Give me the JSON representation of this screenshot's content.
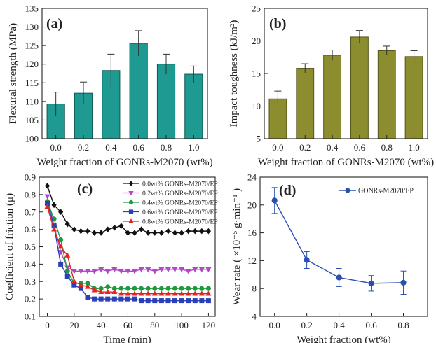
{
  "chart_data": [
    {
      "type": "bar",
      "panel_label": "(a)",
      "categories": [
        "0.0",
        "0.2",
        "0.4",
        "0.6",
        "0.8",
        "1.0"
      ],
      "values": [
        109.3,
        112.2,
        118.3,
        125.6,
        120.0,
        117.3
      ],
      "errors": [
        3.2,
        3.0,
        4.4,
        3.4,
        2.7,
        2.2
      ],
      "xlabel": "Weight fraction of GONRs-M2070 (wt%)",
      "ylabel": "Flexural strength (MPa)",
      "ylim": [
        100,
        135
      ],
      "yticks": [
        "100",
        "105",
        "110",
        "115",
        "120",
        "125",
        "130",
        "135"
      ],
      "color": "#1e9a93",
      "edge_color": "#0f5a55"
    },
    {
      "type": "bar",
      "panel_label": "(b)",
      "categories": [
        "0.0",
        "0.2",
        "0.4",
        "0.6",
        "0.8",
        "1.0"
      ],
      "values": [
        11.1,
        15.8,
        17.8,
        20.6,
        18.5,
        17.6
      ],
      "errors": [
        1.2,
        0.7,
        0.8,
        1.0,
        0.7,
        0.9
      ],
      "xlabel": "Weight fraction of GONRs-M2070 (wt%)",
      "ylabel": "Impact toughness (kJ/m²)",
      "ylim": [
        5,
        25
      ],
      "yticks": [
        "5",
        "10",
        "15",
        "20",
        "25"
      ],
      "color": "#8b8d2e",
      "edge_color": "#54561a"
    },
    {
      "type": "line",
      "panel_label": "(c)",
      "xlabel": "Time (min)",
      "ylabel": "Coefficient of friction (μ)",
      "xlim": [
        -6,
        125
      ],
      "ylim": [
        0.1,
        0.9
      ],
      "xticks": [
        "0",
        "20",
        "40",
        "60",
        "80",
        "100",
        "120"
      ],
      "yticks": [
        "0.1",
        "0.2",
        "0.3",
        "0.4",
        "0.5",
        "0.6",
        "0.7",
        "0.8",
        "0.9"
      ],
      "legend_position": "top-right",
      "x": [
        0,
        5,
        10,
        15,
        20,
        25,
        30,
        35,
        40,
        45,
        50,
        55,
        60,
        65,
        70,
        75,
        80,
        85,
        90,
        95,
        100,
        105,
        110,
        115,
        120
      ],
      "series": [
        {
          "name": "0.0wt% GONRs-M2070/EP",
          "color": "#111111",
          "marker": "diamond",
          "values": [
            0.85,
            0.74,
            0.7,
            0.63,
            0.6,
            0.59,
            0.59,
            0.58,
            0.58,
            0.6,
            0.61,
            0.62,
            0.58,
            0.58,
            0.6,
            0.58,
            0.58,
            0.58,
            0.59,
            0.58,
            0.58,
            0.59,
            0.59,
            0.59,
            0.59
          ]
        },
        {
          "name": "0.2wt% GONRs-M2070/EP",
          "color": "#b447c8",
          "marker": "triangle-down",
          "values": [
            0.79,
            0.62,
            0.47,
            0.38,
            0.36,
            0.36,
            0.36,
            0.36,
            0.37,
            0.36,
            0.37,
            0.36,
            0.36,
            0.36,
            0.37,
            0.37,
            0.36,
            0.37,
            0.37,
            0.37,
            0.37,
            0.36,
            0.37,
            0.37,
            0.37
          ]
        },
        {
          "name": "0.4wt% GONRs-M2070/EP",
          "color": "#1c9a3c",
          "marker": "circle",
          "values": [
            0.76,
            0.66,
            0.54,
            0.36,
            0.29,
            0.29,
            0.29,
            0.26,
            0.26,
            0.27,
            0.26,
            0.26,
            0.26,
            0.26,
            0.26,
            0.26,
            0.26,
            0.26,
            0.26,
            0.26,
            0.26,
            0.26,
            0.26,
            0.26,
            0.26
          ]
        },
        {
          "name": "0.6wt% GONRs-M2070/EP",
          "color": "#2a3fb8",
          "marker": "square",
          "values": [
            0.75,
            0.62,
            0.4,
            0.33,
            0.28,
            0.26,
            0.21,
            0.2,
            0.2,
            0.2,
            0.2,
            0.2,
            0.2,
            0.2,
            0.19,
            0.19,
            0.19,
            0.19,
            0.19,
            0.19,
            0.19,
            0.19,
            0.19,
            0.19,
            0.19
          ]
        },
        {
          "name": "0.8wt% GONRs-M2070/EP",
          "color": "#e0241f",
          "marker": "triangle-up",
          "values": [
            0.73,
            0.6,
            0.5,
            0.45,
            0.3,
            0.28,
            0.27,
            0.25,
            0.24,
            0.24,
            0.24,
            0.23,
            0.23,
            0.23,
            0.23,
            0.23,
            0.23,
            0.23,
            0.23,
            0.23,
            0.23,
            0.23,
            0.23,
            0.23,
            0.23
          ]
        }
      ]
    },
    {
      "type": "line",
      "panel_label": "(d)",
      "xlabel": "Weight fraction (wt%)",
      "ylabel": "Wear rate ( ×10⁻⁵ g·min⁻¹ )",
      "xlim": [
        -0.09,
        0.95
      ],
      "ylim": [
        2.5,
        24
      ],
      "xticks": [
        "0.0",
        "0.2",
        "0.4",
        "0.6",
        "0.8"
      ],
      "yticks": [
        "4",
        "8",
        "12",
        "16",
        "20",
        "24"
      ],
      "legend_position": "top-right",
      "x": [
        0.0,
        0.2,
        0.4,
        0.6,
        0.8
      ],
      "series": [
        {
          "name": "GONRs-M2070/EP",
          "color": "#2a4fb0",
          "marker": "circle",
          "values": [
            20.4,
            11.2,
            8.5,
            7.6,
            7.7
          ],
          "errors": [
            2.0,
            1.3,
            1.4,
            1.2,
            1.8
          ]
        }
      ]
    }
  ]
}
